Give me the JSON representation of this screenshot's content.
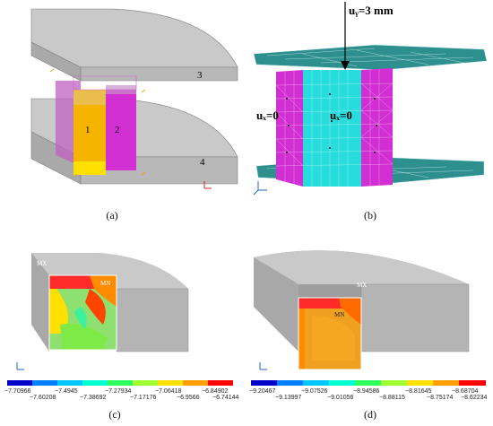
{
  "panels": {
    "a": {
      "caption": "(a)",
      "labels": {
        "block1": "1",
        "block2": "2",
        "plate3": "3",
        "plate4": "4"
      }
    },
    "b": {
      "caption": "(b)",
      "load": "uᵧ=3 mm",
      "bc_left": "uₓ=0",
      "bc_right": "uₓ=0"
    },
    "c": {
      "caption": "(c)",
      "mx": "MX",
      "mn": "MN",
      "colorbar_top": [
        "−7.70966",
        "−7.4945",
        "−7.27934",
        "−7.06418",
        "−6.84902"
      ],
      "colorbar_bottom": [
        "−7.60208",
        "−7.38692",
        "−7.17176",
        "−6.9566",
        "−6.74144"
      ]
    },
    "d": {
      "caption": "(d)",
      "mx": "MX",
      "mn": "MN",
      "colorbar_top": [
        "−9.20467",
        "−9.07526",
        "−8.94586",
        "−8.81645",
        "−8.68704"
      ],
      "colorbar_bottom": [
        "−9.13997",
        "−9.01056",
        "−8.88115",
        "−8.75174",
        "−8.62234"
      ]
    }
  },
  "colors": {
    "grey_top": "#c9c9c9",
    "grey_side": "#9e9e9e",
    "grey_front": "#b4b4b4",
    "teal": "#2e8f8f",
    "cyan": "#27dcdc",
    "magenta": "#d22fd2",
    "orange": "#f29d16",
    "legend": [
      "#0000c8",
      "#0080ff",
      "#00c8ff",
      "#00ffd0",
      "#30ff60",
      "#a0ff30",
      "#ffe000",
      "#ffa000",
      "#ff0000"
    ]
  }
}
